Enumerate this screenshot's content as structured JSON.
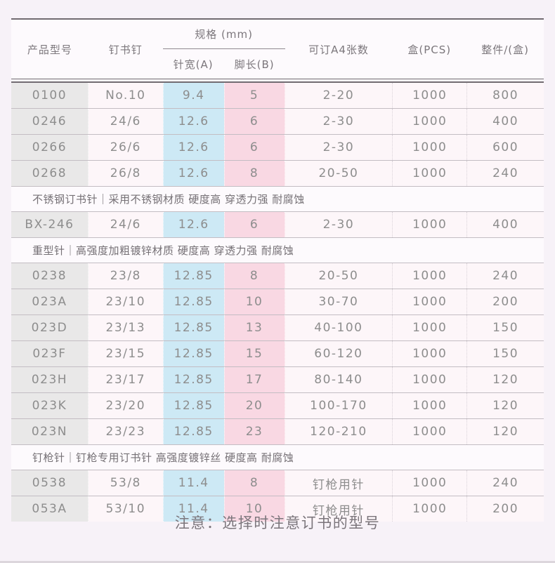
{
  "table": {
    "header": {
      "product": "产品型号",
      "staple": "钉书钉",
      "spec_group": "规格 (mm)",
      "needle_width": "针宽(A)",
      "leg_length": "脚长(B)",
      "a4_sheets": "可订A4张数",
      "box_pcs": "盒(PCS)",
      "carton": "整件/(盒)"
    },
    "rows": [
      {
        "type": "data",
        "product": "0100",
        "staple": "No.10",
        "width_a": "9.4",
        "leg_b": "5",
        "a4": "2-20",
        "box": "1000",
        "carton": "800"
      },
      {
        "type": "data",
        "product": "0246",
        "staple": "24/6",
        "width_a": "12.6",
        "leg_b": "6",
        "a4": "2-30",
        "box": "1000",
        "carton": "400"
      },
      {
        "type": "data",
        "product": "0266",
        "staple": "26/6",
        "width_a": "12.6",
        "leg_b": "6",
        "a4": "2-30",
        "box": "1000",
        "carton": "600"
      },
      {
        "type": "data",
        "product": "0268",
        "staple": "26/8",
        "width_a": "12.6",
        "leg_b": "8",
        "a4": "20-50",
        "box": "1000",
        "carton": "240"
      },
      {
        "type": "section",
        "label": "不锈钢订书针｜采用不锈钢材质 硬度高 穿透力强  耐腐蚀"
      },
      {
        "type": "data",
        "product": "BX-246",
        "staple": "24/6",
        "width_a": "12.6",
        "leg_b": "6",
        "a4": "2-30",
        "box": "1000",
        "carton": "400"
      },
      {
        "type": "section",
        "label": "重型针｜高强度加粗镀锌材质 硬度高 穿透力强  耐腐蚀"
      },
      {
        "type": "data",
        "product": "0238",
        "staple": "23/8",
        "width_a": "12.85",
        "leg_b": "8",
        "a4": "20-50",
        "box": "1000",
        "carton": "240"
      },
      {
        "type": "data",
        "product": "023A",
        "staple": "23/10",
        "width_a": "12.85",
        "leg_b": "10",
        "a4": "30-70",
        "box": "1000",
        "carton": "200"
      },
      {
        "type": "data",
        "product": "023D",
        "staple": "23/13",
        "width_a": "12.85",
        "leg_b": "13",
        "a4": "40-100",
        "box": "1000",
        "carton": "150"
      },
      {
        "type": "data",
        "product": "023F",
        "staple": "23/15",
        "width_a": "12.85",
        "leg_b": "15",
        "a4": "60-120",
        "box": "1000",
        "carton": "150"
      },
      {
        "type": "data",
        "product": "023H",
        "staple": "23/17",
        "width_a": "12.85",
        "leg_b": "17",
        "a4": "80-140",
        "box": "1000",
        "carton": "120"
      },
      {
        "type": "data",
        "product": "023K",
        "staple": "23/20",
        "width_a": "12.85",
        "leg_b": "20",
        "a4": "100-170",
        "box": "1000",
        "carton": "120"
      },
      {
        "type": "data",
        "product": "023N",
        "staple": "23/23",
        "width_a": "12.85",
        "leg_b": "23",
        "a4": "120-210",
        "box": "1000",
        "carton": "120"
      },
      {
        "type": "section",
        "label": "钉枪针｜钉枪专用订书针 高强度镀锌丝 硬度高 耐腐蚀"
      },
      {
        "type": "data",
        "product": "0538",
        "staple": "53/8",
        "width_a": "11.4",
        "leg_b": "8",
        "a4": "钉枪用针",
        "box": "1000",
        "carton": "240"
      },
      {
        "type": "data",
        "product": "053A",
        "staple": "53/10",
        "width_a": "11.4",
        "leg_b": "10",
        "a4": "钉枪用针",
        "box": "1000",
        "carton": "200"
      }
    ]
  },
  "note": "注意：选择时注意订书的型号",
  "colors": {
    "page_bg": "#f7f2f8",
    "model_col_bg": "#e9e8e8",
    "needle_width_col_bg": "#cde9f5",
    "leg_length_col_bg": "#f9d8e3",
    "light_cell_bg": "#fdf6f9",
    "rule_dark": "#716b71",
    "row_divider": "#c3bdc3"
  }
}
